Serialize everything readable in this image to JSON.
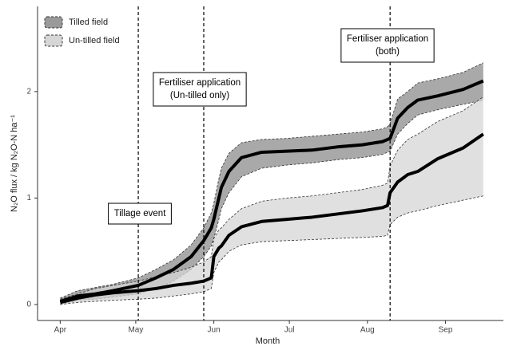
{
  "chart_data": {
    "type": "line",
    "x_label": "Month",
    "y_label": "N₂O flux  / kg N₂O-N ha⁻¹",
    "x": [
      0,
      7,
      14,
      21,
      31,
      38,
      45,
      52,
      57,
      60,
      61,
      63,
      64,
      67,
      72,
      80,
      90,
      100,
      110,
      120,
      128,
      130,
      131,
      134,
      138,
      142,
      150,
      160,
      168
    ],
    "series": [
      {
        "name": "Tilled field",
        "color": "#000000",
        "band_color": "#9a9a9a",
        "values": [
          0.03,
          0.08,
          0.1,
          0.13,
          0.18,
          0.25,
          0.33,
          0.45,
          0.6,
          0.72,
          0.8,
          1.0,
          1.1,
          1.25,
          1.38,
          1.43,
          1.44,
          1.45,
          1.48,
          1.5,
          1.53,
          1.55,
          1.56,
          1.75,
          1.85,
          1.92,
          1.96,
          2.02,
          2.1
        ],
        "lower": [
          0.0,
          0.04,
          0.05,
          0.07,
          0.1,
          0.15,
          0.22,
          0.33,
          0.45,
          0.55,
          0.62,
          0.8,
          0.9,
          1.05,
          1.2,
          1.28,
          1.31,
          1.33,
          1.36,
          1.38,
          1.41,
          1.43,
          1.44,
          1.6,
          1.7,
          1.78,
          1.83,
          1.88,
          1.92
        ],
        "upper": [
          0.06,
          0.13,
          0.16,
          0.19,
          0.25,
          0.33,
          0.42,
          0.56,
          0.72,
          0.86,
          0.95,
          1.18,
          1.28,
          1.42,
          1.52,
          1.55,
          1.56,
          1.58,
          1.6,
          1.62,
          1.65,
          1.67,
          1.7,
          1.93,
          2.0,
          2.08,
          2.12,
          2.18,
          2.27
        ]
      },
      {
        "name": "Un-tilled field",
        "color": "#000000",
        "band_color": "#d6d6d6",
        "values": [
          0.02,
          0.06,
          0.09,
          0.11,
          0.13,
          0.15,
          0.18,
          0.2,
          0.22,
          0.25,
          0.45,
          0.53,
          0.55,
          0.65,
          0.73,
          0.78,
          0.8,
          0.82,
          0.85,
          0.88,
          0.91,
          0.93,
          1.05,
          1.15,
          1.22,
          1.25,
          1.37,
          1.47,
          1.6
        ],
        "lower": [
          0.0,
          0.02,
          0.03,
          0.04,
          0.05,
          0.06,
          0.08,
          0.1,
          0.12,
          0.15,
          0.3,
          0.4,
          0.42,
          0.5,
          0.56,
          0.59,
          0.6,
          0.61,
          0.62,
          0.63,
          0.64,
          0.65,
          0.75,
          0.82,
          0.86,
          0.88,
          0.93,
          0.98,
          1.02
        ],
        "upper": [
          0.05,
          0.1,
          0.15,
          0.18,
          0.22,
          0.26,
          0.3,
          0.35,
          0.4,
          0.45,
          0.62,
          0.7,
          0.72,
          0.8,
          0.9,
          0.97,
          1.0,
          1.02,
          1.05,
          1.08,
          1.12,
          1.14,
          1.3,
          1.45,
          1.55,
          1.6,
          1.72,
          1.82,
          1.95
        ]
      }
    ],
    "events": [
      {
        "x": 31,
        "label": [
          "Tillage event"
        ]
      },
      {
        "x": 57,
        "label": [
          "Fertiliser application",
          "(Un-tilled only)"
        ]
      },
      {
        "x": 131,
        "label": [
          "Fertiliser application",
          "(both)"
        ]
      }
    ],
    "xlim": [
      -9,
      176
    ],
    "xticks": [
      {
        "value": 0,
        "label": "Apr"
      },
      {
        "value": 30,
        "label": "May"
      },
      {
        "value": 61,
        "label": "Jun"
      },
      {
        "value": 91,
        "label": "Jul"
      },
      {
        "value": 122,
        "label": "Aug"
      },
      {
        "value": 153,
        "label": "Sep"
      }
    ],
    "ylim": [
      -0.15,
      2.8
    ],
    "yticks": [
      0,
      1,
      2
    ],
    "legend": "top-left"
  }
}
